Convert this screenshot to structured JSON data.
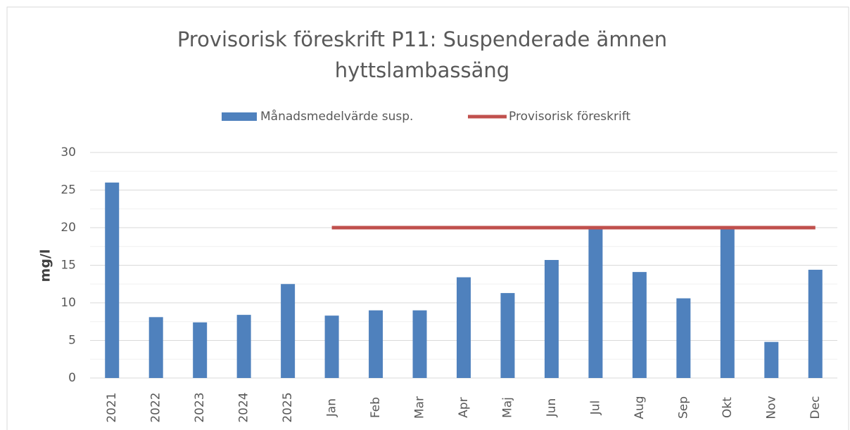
{
  "chart_data": {
    "type": "bar",
    "title": [
      "Provisorisk föreskrift P11: Suspenderade ämnen",
      "hyttslambassäng"
    ],
    "ylabel": "mg/l",
    "categories": [
      "2021",
      "2022",
      "2023",
      "2024",
      "2025",
      "Jan",
      "Feb",
      "Mar",
      "Apr",
      "Maj",
      "Jun",
      "Jul",
      "Aug",
      "Sep",
      "Okt",
      "Nov",
      "Dec"
    ],
    "series": [
      {
        "name": "Månadsmedelvärde susp.",
        "type": "bar",
        "color": "#4f81bd",
        "values": [
          26,
          8.1,
          7.4,
          8.4,
          12.5,
          8.3,
          9.0,
          9.0,
          13.4,
          11.3,
          15.7,
          20,
          14.1,
          10.6,
          20,
          4.8,
          14.4
        ]
      },
      {
        "name": "Provisorisk föreskrift",
        "type": "line",
        "color": "#c0504d",
        "values": [
          null,
          null,
          null,
          null,
          null,
          20,
          20,
          20,
          20,
          20,
          20,
          20,
          20,
          20,
          20,
          20,
          20
        ]
      }
    ],
    "ylim": [
      0,
      30
    ],
    "yticks": [
      0,
      5,
      10,
      15,
      20,
      25,
      30
    ],
    "yminor": [
      2.5,
      7.5,
      12.5,
      17.5,
      22.5,
      27.5
    ],
    "grid": true,
    "legend": "top"
  }
}
